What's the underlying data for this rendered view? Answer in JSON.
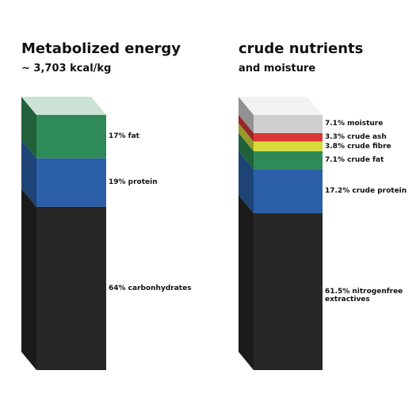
{
  "chart_data": [
    {
      "type": "bar",
      "stacked": true,
      "title": "Metabolized energy",
      "subtitle": "~ 3,703 kcal/kg",
      "values": [
        64,
        19,
        17
      ],
      "value_labels": [
        "64% carbonhydrates",
        "19% protein",
        "17% fat"
      ],
      "colors": [
        "#272727",
        "#2b5fa8",
        "#2e8a56"
      ]
    },
    {
      "type": "bar",
      "stacked": true,
      "title": "crude nutrients",
      "subtitle": "and moisture",
      "values": [
        61.5,
        17.2,
        7.1,
        3.8,
        3.3,
        7.1
      ],
      "value_labels": [
        "61.5% nitrogenfree extractives",
        "17.2% crude protein",
        "7.1% crude fat",
        "3.8% crude fibre",
        "3.3% crude ash",
        "7.1% moisture"
      ],
      "colors": [
        "#272727",
        "#2b5fa8",
        "#2e8a56",
        "#d8dc3a",
        "#d9383a",
        "#cfcfcf"
      ]
    }
  ]
}
